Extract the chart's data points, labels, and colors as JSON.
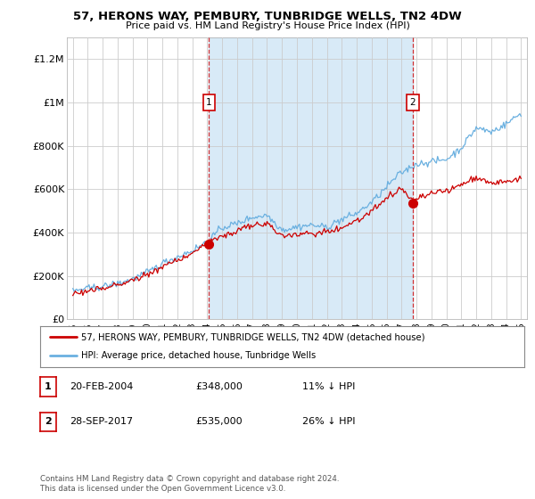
{
  "title": "57, HERONS WAY, PEMBURY, TUNBRIDGE WELLS, TN2 4DW",
  "subtitle": "Price paid vs. HM Land Registry's House Price Index (HPI)",
  "hpi_color": "#6ab0e0",
  "hpi_fill_color": "#d8eaf7",
  "price_color": "#cc0000",
  "background_color": "#ffffff",
  "plot_bg_color": "#ffffff",
  "grid_color": "#cccccc",
  "ylim": [
    0,
    1300000
  ],
  "yticks": [
    0,
    200000,
    400000,
    600000,
    800000,
    1000000,
    1200000
  ],
  "ytick_labels": [
    "£0",
    "£200K",
    "£400K",
    "£600K",
    "£800K",
    "£1M",
    "£1.2M"
  ],
  "xstart_year": 1995,
  "xend_year": 2025,
  "transaction1_date": 2004.12,
  "transaction1_price": 348000,
  "transaction1_label": "1",
  "transaction2_date": 2017.75,
  "transaction2_price": 535000,
  "transaction2_label": "2",
  "legend_line1": "57, HERONS WAY, PEMBURY, TUNBRIDGE WELLS, TN2 4DW (detached house)",
  "legend_line2": "HPI: Average price, detached house, Tunbridge Wells",
  "table_row1": [
    "1",
    "20-FEB-2004",
    "£348,000",
    "11% ↓ HPI"
  ],
  "table_row2": [
    "2",
    "28-SEP-2017",
    "£535,000",
    "26% ↓ HPI"
  ],
  "footnote": "Contains HM Land Registry data © Crown copyright and database right 2024.\nThis data is licensed under the Open Government Licence v3.0."
}
